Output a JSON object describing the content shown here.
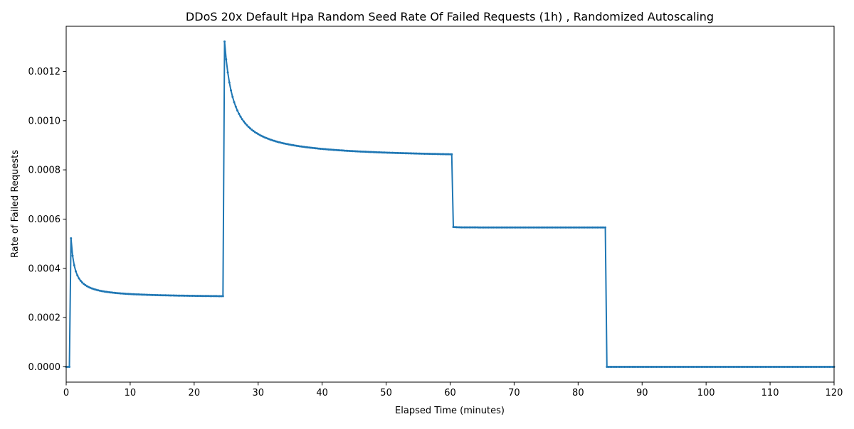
{
  "chart_data": {
    "type": "line",
    "title": "DDoS 20x Default Hpa Random Seed Rate Of Failed Requests (1h) , Randomized Autoscaling",
    "xlabel": "Elapsed Time (minutes)",
    "ylabel": "Rate of Failed Requests",
    "xlim": [
      0,
      120
    ],
    "ylim": [
      -6.2e-05,
      0.001383
    ],
    "x_ticks": [
      0,
      10,
      20,
      30,
      40,
      50,
      60,
      70,
      80,
      90,
      100,
      110,
      120
    ],
    "x_tick_labels": [
      "0",
      "10",
      "20",
      "30",
      "40",
      "50",
      "60",
      "70",
      "80",
      "90",
      "100",
      "110",
      "120"
    ],
    "y_ticks": [
      0,
      0.0002,
      0.0004,
      0.0006,
      0.0008,
      0.001,
      0.0012
    ],
    "y_tick_labels": [
      "0.0000",
      "0.0002",
      "0.0004",
      "0.0006",
      "0.0008",
      "0.0010",
      "0.0012"
    ],
    "grid": false,
    "series": [
      {
        "color": "#1f77b4",
        "marker": "dot",
        "segments": [
          {
            "x_start": 0.0,
            "x_end": 0.5,
            "step": 0.25,
            "y": 0,
            "y_peak": 0,
            "tau": 1
          },
          {
            "x_start": 0.75,
            "x_end": 24.5,
            "step": 0.25,
            "y": 0.000281,
            "y_peak": 0.000522,
            "tau": 0.6
          },
          {
            "x_start": 24.75,
            "x_end": 60.25,
            "step": 0.25,
            "y": 0.000845,
            "y_peak": 0.001321,
            "tau": 1.4
          },
          {
            "x_start": 60.5,
            "x_end": 84.25,
            "step": 0.25,
            "y": 0.000566,
            "y_peak": 0.000568,
            "tau": 0.5
          },
          {
            "x_start": 84.5,
            "x_end": 120.0,
            "step": 0.25,
            "y": 0,
            "y_peak": 0,
            "tau": 1
          }
        ]
      }
    ]
  }
}
